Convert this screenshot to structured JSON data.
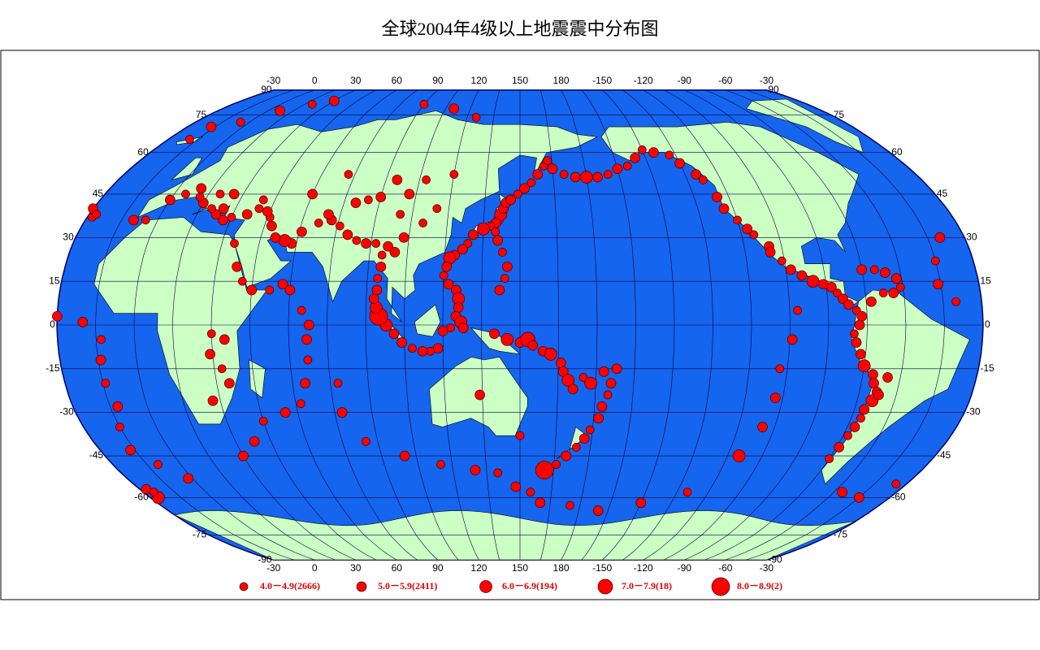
{
  "title": "全球2004年4级以上地震震中分布图",
  "lon_ticks": [
    -30,
    0,
    30,
    60,
    90,
    120,
    150,
    180,
    -150,
    -120,
    -90,
    -60,
    -30
  ],
  "lat_ticks": [
    90,
    75,
    60,
    45,
    30,
    15,
    0,
    -15,
    -30,
    -45,
    -60,
    -75,
    -90
  ],
  "legend": [
    "4.0－4.9(2666)",
    "5.0－5.9(2411)",
    "6.0－6.9(194)",
    "7.0－7.9(18)",
    "8.0－8.9(2)"
  ],
  "events": [
    [
      141,
      36,
      1
    ],
    [
      142,
      38,
      2
    ],
    [
      143,
      40,
      1
    ],
    [
      144,
      42,
      1
    ],
    [
      146,
      43,
      1
    ],
    [
      149,
      45,
      0
    ],
    [
      152,
      47,
      1
    ],
    [
      155,
      49,
      0
    ],
    [
      158,
      52,
      1
    ],
    [
      161,
      55,
      0
    ],
    [
      163,
      57,
      0
    ],
    [
      140,
      35,
      1
    ],
    [
      138,
      34,
      0
    ],
    [
      135,
      33,
      2
    ],
    [
      131,
      31,
      1
    ],
    [
      129,
      28,
      0
    ],
    [
      127,
      26,
      1
    ],
    [
      124,
      24,
      1
    ],
    [
      122,
      23,
      2
    ],
    [
      121,
      20,
      1
    ],
    [
      120,
      17,
      0
    ],
    [
      122,
      14,
      1
    ],
    [
      125,
      12,
      1
    ],
    [
      126,
      9,
      2
    ],
    [
      126,
      6,
      1
    ],
    [
      125,
      3,
      1
    ],
    [
      127,
      1,
      2
    ],
    [
      128,
      -1,
      1
    ],
    [
      123,
      -1,
      0
    ],
    [
      120,
      -2,
      1
    ],
    [
      118,
      -8,
      1
    ],
    [
      115,
      -9,
      0
    ],
    [
      112,
      -9,
      1
    ],
    [
      108,
      -8,
      0
    ],
    [
      104,
      -6,
      1
    ],
    [
      101,
      -3,
      1
    ],
    [
      98,
      0,
      2
    ],
    [
      95,
      3,
      4
    ],
    [
      94,
      6,
      2
    ],
    [
      93,
      9,
      1
    ],
    [
      94,
      12,
      1
    ],
    [
      94,
      16,
      0
    ],
    [
      95,
      20,
      1
    ],
    [
      95,
      24,
      0
    ],
    [
      97,
      27,
      1
    ],
    [
      92,
      28,
      0
    ],
    [
      88,
      28,
      1
    ],
    [
      84,
      29,
      0
    ],
    [
      80,
      31,
      1
    ],
    [
      76,
      34,
      0
    ],
    [
      72,
      36,
      1
    ],
    [
      70,
      38,
      1
    ],
    [
      67,
      35,
      0
    ],
    [
      61,
      32,
      1
    ],
    [
      58,
      28,
      1
    ],
    [
      55,
      29,
      2
    ],
    [
      51,
      30,
      1
    ],
    [
      48,
      34,
      1
    ],
    [
      46,
      37,
      0
    ],
    [
      44,
      39,
      1
    ],
    [
      40,
      40,
      0
    ],
    [
      36,
      38,
      1
    ],
    [
      30,
      37,
      0
    ],
    [
      27,
      36,
      1
    ],
    [
      23,
      38,
      1
    ],
    [
      20,
      40,
      0
    ],
    [
      15,
      42,
      1
    ],
    [
      12,
      44,
      0
    ],
    [
      26,
      45,
      1
    ],
    [
      40,
      43,
      0
    ],
    [
      80,
      42,
      1
    ],
    [
      85,
      43,
      0
    ],
    [
      90,
      44,
      1
    ],
    [
      100,
      38,
      0
    ],
    [
      103,
      30,
      1
    ],
    [
      100,
      25,
      1
    ],
    [
      110,
      35,
      0
    ],
    [
      115,
      40,
      0
    ],
    [
      102,
      45,
      1
    ],
    [
      108,
      50,
      0
    ],
    [
      120,
      52,
      0
    ],
    [
      95,
      50,
      1
    ],
    [
      72,
      52,
      0
    ],
    [
      60,
      45,
      1
    ],
    [
      142,
      12,
      1
    ],
    [
      144,
      16,
      0
    ],
    [
      145,
      20,
      1
    ],
    [
      143,
      25,
      0
    ],
    [
      141,
      29,
      1
    ],
    [
      140,
      32,
      0
    ],
    [
      140,
      -3,
      1
    ],
    [
      145,
      -5,
      2
    ],
    [
      150,
      -6,
      1
    ],
    [
      153,
      -5,
      3
    ],
    [
      155,
      -7,
      1
    ],
    [
      159,
      -9,
      1
    ],
    [
      162,
      -10,
      2
    ],
    [
      166,
      -13,
      1
    ],
    [
      167,
      -16,
      1
    ],
    [
      169,
      -19,
      2
    ],
    [
      171,
      -22,
      1
    ],
    [
      175,
      -18,
      0
    ],
    [
      178,
      -20,
      2
    ],
    [
      -177,
      -16,
      1
    ],
    [
      -174,
      -20,
      1
    ],
    [
      -175,
      -24,
      0
    ],
    [
      -177,
      -28,
      1
    ],
    [
      -178,
      -32,
      1
    ],
    [
      179,
      -36,
      0
    ],
    [
      177,
      -39,
      1
    ],
    [
      174,
      -42,
      0
    ],
    [
      170,
      -45,
      1
    ],
    [
      166,
      -48,
      0
    ],
    [
      161,
      -50,
      4
    ],
    [
      -172,
      -15,
      1
    ],
    [
      134,
      -24,
      1
    ],
    [
      150,
      -38,
      0
    ],
    [
      165,
      54,
      1
    ],
    [
      170,
      52,
      0
    ],
    [
      175,
      51,
      1
    ],
    [
      -180,
      51,
      2
    ],
    [
      -175,
      51,
      1
    ],
    [
      -170,
      52,
      0
    ],
    [
      -165,
      54,
      1
    ],
    [
      -160,
      55,
      0
    ],
    [
      -155,
      58,
      1
    ],
    [
      -150,
      61,
      0
    ],
    [
      -145,
      60,
      1
    ],
    [
      -138,
      59,
      0
    ],
    [
      -135,
      56,
      1
    ],
    [
      -130,
      52,
      1
    ],
    [
      -128,
      50,
      0
    ],
    [
      -125,
      44,
      1
    ],
    [
      -124,
      40,
      1
    ],
    [
      -120,
      36,
      0
    ],
    [
      -117,
      33,
      1
    ],
    [
      -115,
      31,
      0
    ],
    [
      -110,
      27,
      1
    ],
    [
      -106,
      22,
      0
    ],
    [
      -103,
      19,
      1
    ],
    [
      -99,
      17,
      1
    ],
    [
      -95,
      15,
      2
    ],
    [
      -91,
      14,
      1
    ],
    [
      -88,
      13,
      1
    ],
    [
      -86,
      11,
      0
    ],
    [
      -84,
      9,
      1
    ],
    [
      -82,
      7,
      1
    ],
    [
      -79,
      5,
      0
    ],
    [
      -77,
      3,
      1
    ],
    [
      -78,
      0,
      1
    ],
    [
      -80,
      -3,
      0
    ],
    [
      -79,
      -6,
      1
    ],
    [
      -77,
      -10,
      1
    ],
    [
      -75,
      -14,
      2
    ],
    [
      -71,
      -17,
      1
    ],
    [
      -70,
      -20,
      1
    ],
    [
      -68,
      -23,
      1
    ],
    [
      -69,
      -26,
      2
    ],
    [
      -71,
      -29,
      1
    ],
    [
      -71,
      -32,
      0
    ],
    [
      -72,
      -35,
      1
    ],
    [
      -73,
      -38,
      0
    ],
    [
      -74,
      -42,
      1
    ],
    [
      -75,
      -46,
      0
    ],
    [
      -65,
      -18,
      1
    ],
    [
      -67,
      -24,
      1
    ],
    [
      -75,
      19,
      1
    ],
    [
      -70,
      19,
      0
    ],
    [
      -66,
      18,
      1
    ],
    [
      -62,
      16,
      1
    ],
    [
      -61,
      13,
      0
    ],
    [
      -64,
      11,
      1
    ],
    [
      -68,
      11,
      0
    ],
    [
      -73,
      8,
      1
    ],
    [
      -27,
      -57,
      1
    ],
    [
      -26,
      -60,
      2
    ],
    [
      -35,
      -55,
      0
    ],
    [
      -45,
      -60,
      1
    ],
    [
      -56,
      -58,
      1
    ],
    [
      -30,
      40,
      1
    ],
    [
      -28,
      37,
      0
    ],
    [
      -40,
      30,
      1
    ],
    [
      -45,
      22,
      0
    ],
    [
      -46,
      14,
      1
    ],
    [
      -40,
      8,
      0
    ],
    [
      -30,
      3,
      1
    ],
    [
      -20,
      1,
      1
    ],
    [
      -13,
      -5,
      0
    ],
    [
      -14,
      -12,
      1
    ],
    [
      -14,
      -20,
      0
    ],
    [
      -12,
      -28,
      1
    ],
    [
      -15,
      -35,
      0
    ],
    [
      -17,
      -43,
      1
    ],
    [
      -10,
      -48,
      0
    ],
    [
      -2,
      -53,
      1
    ],
    [
      -19,
      65,
      0
    ],
    [
      -17,
      70,
      1
    ],
    [
      -5,
      72,
      0
    ],
    [
      7,
      77,
      1
    ],
    [
      20,
      80,
      0
    ],
    [
      30,
      82,
      1
    ],
    [
      90,
      80,
      0
    ],
    [
      110,
      78,
      1
    ],
    [
      125,
      74,
      0
    ],
    [
      57,
      14,
      1
    ],
    [
      52,
      12,
      0
    ],
    [
      45,
      12,
      1
    ],
    [
      41,
      15,
      0
    ],
    [
      38,
      20,
      1
    ],
    [
      35,
      28,
      0
    ],
    [
      60,
      12,
      1
    ],
    [
      65,
      5,
      0
    ],
    [
      68,
      0,
      1
    ],
    [
      67,
      -5,
      1
    ],
    [
      67,
      -12,
      0
    ],
    [
      65,
      -20,
      1
    ],
    [
      62,
      -27,
      0
    ],
    [
      55,
      -30,
      1
    ],
    [
      45,
      -33,
      0
    ],
    [
      38,
      -40,
      1
    ],
    [
      30,
      -45,
      1
    ],
    [
      78,
      -20,
      0
    ],
    [
      78,
      -30,
      1
    ],
    [
      85,
      -40,
      0
    ],
    [
      100,
      -45,
      1
    ],
    [
      115,
      -48,
      0
    ],
    [
      130,
      -50,
      1
    ],
    [
      140,
      -51,
      0
    ],
    [
      148,
      -56,
      1
    ],
    [
      155,
      -58,
      0
    ],
    [
      160,
      -62,
      1
    ],
    [
      175,
      -63,
      0
    ],
    [
      -170,
      -65,
      1
    ],
    [
      -150,
      -62,
      1
    ],
    [
      -130,
      -58,
      0
    ],
    [
      -115,
      -45,
      2
    ],
    [
      -110,
      -35,
      1
    ],
    [
      -108,
      -25,
      1
    ],
    [
      -108,
      -15,
      0
    ],
    [
      -104,
      -5,
      1
    ],
    [
      -102,
      5,
      0
    ],
    [
      -110,
      25,
      1
    ],
    [
      35,
      -5,
      1
    ],
    [
      30,
      -3,
      0
    ],
    [
      29,
      -10,
      1
    ],
    [
      33,
      -15,
      0
    ],
    [
      35,
      -20,
      1
    ],
    [
      27,
      -26,
      1
    ],
    [
      -10,
      36,
      1
    ],
    [
      -5,
      36,
      0
    ],
    [
      0,
      43,
      1
    ],
    [
      5,
      45,
      0
    ],
    [
      10,
      47,
      1
    ],
    [
      20,
      45,
      0
    ],
    [
      25,
      40,
      1
    ],
    [
      -27,
      38,
      0
    ],
    [
      -25,
      -58,
      0
    ]
  ]
}
